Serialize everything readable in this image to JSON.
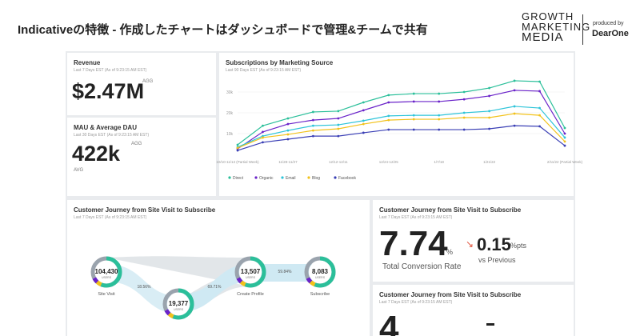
{
  "header": {
    "title": "Indicativeの特徴 - 作成したチャートはダッシュボードで管理&チームで共有",
    "brand": [
      "GROWTH",
      "MARKETING",
      "MEDIA"
    ],
    "produced_by": "produced by",
    "partner": "DearOne"
  },
  "revenue": {
    "title": "Revenue",
    "subtitle": "Last 7 Days EST (As of 9:23:15 AM EST)",
    "value": "$2.47M",
    "badge": "AGG"
  },
  "mau": {
    "title": "MAU & Average DAU",
    "subtitle": "Last 30 Days EST (As of 9:23:15 AM EST)",
    "value": "422k",
    "badge": "AGG",
    "note": "AVG"
  },
  "chart_data": {
    "type": "line",
    "title": "Subscriptions by Marketing Source",
    "subtitle": "Last 90 Days EST (As of 9:23:15 AM EST)",
    "categories": [
      "10/10-11/13 (Partial Week)",
      null,
      "11/28-11/27",
      null,
      "12/12-12/11",
      null,
      "12/24-12/25",
      null,
      "1/7/18",
      null,
      "1/21/22",
      null,
      null,
      "2/11/22 (Partial Week)"
    ],
    "series": [
      {
        "name": "Direct",
        "color": "#2bbf9a",
        "values": [
          4600,
          13800,
          17300,
          20400,
          20800,
          25000,
          28500,
          29200,
          29200,
          30000,
          31900,
          35400,
          35000,
          12700
        ]
      },
      {
        "name": "Organic",
        "color": "#6a23c9",
        "values": [
          2700,
          10800,
          14600,
          16500,
          17300,
          21200,
          25000,
          25400,
          25400,
          26500,
          28100,
          30800,
          30400,
          10000
        ]
      },
      {
        "name": "Email",
        "color": "#2ec4d9",
        "values": [
          3500,
          8800,
          11500,
          13800,
          14200,
          16200,
          18500,
          18800,
          18800,
          20000,
          20800,
          23100,
          22300,
          8100
        ]
      },
      {
        "name": "Blog",
        "color": "#f2c21b",
        "values": [
          3100,
          8100,
          9600,
          11500,
          12300,
          14600,
          16500,
          16900,
          16900,
          17700,
          17700,
          19600,
          18800,
          6200
        ]
      },
      {
        "name": "Facebook",
        "color": "#3a3fb5",
        "values": [
          1900,
          5800,
          7300,
          8800,
          8800,
          10400,
          11900,
          11900,
          11900,
          11900,
          12300,
          13800,
          13500,
          4200
        ]
      }
    ],
    "ylim": [
      0,
      40000
    ],
    "yticks": [
      {
        "value": 10000,
        "label": "10k"
      },
      {
        "value": 20000,
        "label": "20k"
      },
      {
        "value": 30000,
        "label": "30k"
      }
    ],
    "grid": true
  },
  "journey": {
    "title": "Customer Journey from Site Visit to Subscribe",
    "subtitle": "Last 7 Days EST (As of 9:23:15 AM EST)",
    "nodes": [
      {
        "value": "104,430",
        "unit": "USERS",
        "label": "Site Visit"
      },
      {
        "value": "19,377",
        "unit": "USERS"
      },
      {
        "value": "13,507",
        "unit": "USERS",
        "label": "Create Profile"
      },
      {
        "value": "8,083",
        "unit": "USERS",
        "label": "Subscribe"
      }
    ],
    "rates": [
      "18.56%",
      "69.71%",
      "59.84%"
    ]
  },
  "conversion": {
    "title": "Customer Journey from Site Visit to Subscribe",
    "subtitle": "Last 7 Days EST (As of 9:23:15 AM EST)",
    "value": "7.74",
    "unit": "%",
    "label": "Total Conversion Rate",
    "change": "0.15",
    "change_unit": "%pts",
    "change_label": "vs Previous"
  },
  "conversion2": {
    "title": "Customer Journey from Site Visit to Subscribe",
    "subtitle": "Last 7 Days EST (As of 9:23:15 AM EST)",
    "value": "4"
  }
}
